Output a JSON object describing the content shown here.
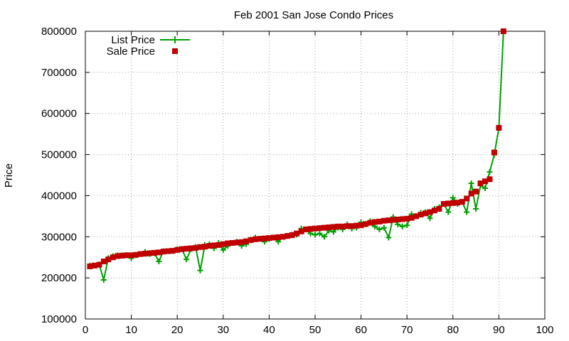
{
  "chart_data": {
    "type": "line",
    "title": "Feb 2001 San Jose Condo Prices",
    "xlabel": "",
    "ylabel": "Price",
    "xlim": [
      0,
      100
    ],
    "ylim": [
      100000,
      800000
    ],
    "x_ticks": [
      "0",
      "10",
      "20",
      "30",
      "40",
      "50",
      "60",
      "70",
      "80",
      "90",
      "100"
    ],
    "y_ticks": [
      "100000",
      "200000",
      "300000",
      "400000",
      "500000",
      "600000",
      "700000",
      "800000"
    ],
    "grid": true,
    "legend_position": "top-left",
    "series": [
      {
        "name": "List Price",
        "color": "#00a000",
        "marker": "plus",
        "style": "line+points",
        "x": [
          1,
          2,
          3,
          4,
          5,
          6,
          7,
          8,
          9,
          10,
          11,
          12,
          13,
          14,
          15,
          16,
          17,
          18,
          19,
          20,
          21,
          22,
          23,
          24,
          25,
          26,
          27,
          28,
          29,
          30,
          31,
          32,
          33,
          34,
          35,
          36,
          37,
          38,
          39,
          40,
          41,
          42,
          43,
          44,
          45,
          46,
          47,
          48,
          49,
          50,
          51,
          52,
          53,
          54,
          55,
          56,
          57,
          58,
          59,
          60,
          61,
          62,
          63,
          64,
          65,
          66,
          67,
          68,
          69,
          70,
          71,
          72,
          73,
          74,
          75,
          76,
          77,
          78,
          79,
          80,
          81,
          82,
          83,
          84,
          85,
          86,
          87,
          88,
          89,
          90,
          91
        ],
        "values": [
          230000,
          230000,
          233000,
          195000,
          248000,
          253000,
          255000,
          255000,
          255000,
          248000,
          255000,
          258000,
          263000,
          258000,
          260000,
          240000,
          265000,
          265000,
          265000,
          270000,
          270000,
          245000,
          270000,
          275000,
          218000,
          280000,
          282000,
          272000,
          285000,
          268000,
          278000,
          285000,
          288000,
          278000,
          282000,
          293000,
          298000,
          295000,
          288000,
          295000,
          298000,
          288000,
          300000,
          302000,
          305000,
          305000,
          320000,
          318000,
          308000,
          305000,
          308000,
          300000,
          315000,
          312000,
          322000,
          318000,
          330000,
          320000,
          322000,
          335000,
          330000,
          338000,
          325000,
          318000,
          322000,
          298000,
          348000,
          330000,
          325000,
          328000,
          355000,
          350000,
          358000,
          360000,
          345000,
          368000,
          372000,
          380000,
          360000,
          395000,
          380000,
          385000,
          360000,
          430000,
          368000,
          425000,
          418000,
          458000,
          500000,
          565000,
          800000
        ]
      },
      {
        "name": "Sale Price",
        "color": "#c00000",
        "marker": "square",
        "style": "points",
        "x": [
          1,
          2,
          3,
          4,
          5,
          6,
          7,
          8,
          9,
          10,
          11,
          12,
          13,
          14,
          15,
          16,
          17,
          18,
          19,
          20,
          21,
          22,
          23,
          24,
          25,
          26,
          27,
          28,
          29,
          30,
          31,
          32,
          33,
          34,
          35,
          36,
          37,
          38,
          39,
          40,
          41,
          42,
          43,
          44,
          45,
          46,
          47,
          48,
          49,
          50,
          51,
          52,
          53,
          54,
          55,
          56,
          57,
          58,
          59,
          60,
          61,
          62,
          63,
          64,
          65,
          66,
          67,
          68,
          69,
          70,
          71,
          72,
          73,
          74,
          75,
          76,
          77,
          78,
          79,
          80,
          81,
          82,
          83,
          84,
          85,
          86,
          87,
          88,
          89,
          90,
          91
        ],
        "values": [
          228000,
          230000,
          232000,
          240000,
          245000,
          250000,
          253000,
          254000,
          255000,
          255000,
          256000,
          258000,
          259000,
          260000,
          261000,
          262000,
          264000,
          265000,
          266000,
          268000,
          270000,
          271000,
          272000,
          273000,
          275000,
          276000,
          278000,
          279000,
          280000,
          282000,
          284000,
          285000,
          286000,
          287000,
          289000,
          292000,
          294000,
          295000,
          296000,
          297000,
          298000,
          299000,
          300000,
          302000,
          304000,
          308000,
          313000,
          318000,
          319000,
          320000,
          321000,
          322000,
          323000,
          324000,
          325000,
          325000,
          326000,
          326000,
          327000,
          328000,
          331000,
          334000,
          336000,
          337000,
          339000,
          340000,
          341000,
          342000,
          343000,
          344000,
          346000,
          350000,
          354000,
          357000,
          360000,
          364000,
          368000,
          380000,
          381000,
          382000,
          383000,
          385000,
          393000,
          405000,
          410000,
          430000,
          435000,
          440000,
          505000,
          565000,
          800000
        ]
      }
    ]
  }
}
